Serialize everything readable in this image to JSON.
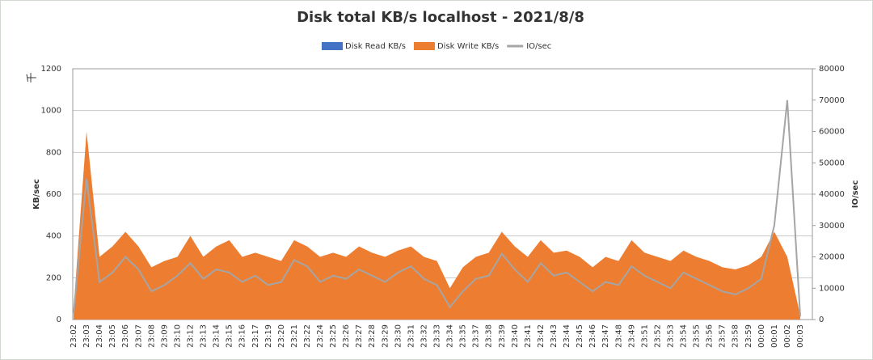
{
  "chart_data": {
    "type": "area",
    "title": "Disk total KB/s localhost - 2021/8/8",
    "y_label": "KB/sec",
    "y2_label": "IO/sec",
    "y_unit_label": "千",
    "categories": [
      "23:02",
      "23:03",
      "23:04",
      "23:05",
      "23:06",
      "23:07",
      "23:08",
      "23:09",
      "23:10",
      "23:12",
      "23:13",
      "23:14",
      "23:15",
      "23:16",
      "23:17",
      "23:19",
      "23:20",
      "23:21",
      "23:22",
      "23:24",
      "23:25",
      "23:26",
      "23:27",
      "23:28",
      "23:29",
      "23:30",
      "23:31",
      "23:32",
      "23:33",
      "23:34",
      "23:35",
      "23:37",
      "23:38",
      "23:39",
      "23:40",
      "23:41",
      "23:42",
      "23:43",
      "23:44",
      "23:45",
      "23:46",
      "23:47",
      "23:48",
      "23:49",
      "23:51",
      "23:52",
      "23:53",
      "23:54",
      "23:55",
      "23:56",
      "23:57",
      "23:58",
      "23:59",
      "00:00",
      "00:01",
      "00:02",
      "00:03"
    ],
    "series": [
      {
        "name": "Disk Read KB/s",
        "color": "#4472c4",
        "values": [
          0,
          0,
          0,
          0,
          0,
          0,
          0,
          0,
          0,
          0,
          0,
          0,
          0,
          0,
          0,
          0,
          0,
          0,
          0,
          0,
          0,
          0,
          0,
          0,
          0,
          0,
          0,
          0,
          0,
          0,
          0,
          0,
          0,
          0,
          0,
          0,
          0,
          0,
          0,
          0,
          0,
          0,
          0,
          0,
          0,
          0,
          0,
          0,
          0,
          0,
          0,
          0,
          0,
          0,
          0,
          0,
          0
        ]
      },
      {
        "name": "Disk Write KB/s",
        "color": "#ed7d31",
        "values": [
          50,
          900,
          300,
          350,
          420,
          350,
          250,
          280,
          300,
          400,
          300,
          350,
          380,
          300,
          320,
          300,
          280,
          380,
          350,
          300,
          320,
          300,
          350,
          320,
          300,
          330,
          350,
          300,
          280,
          150,
          250,
          300,
          320,
          420,
          350,
          300,
          380,
          320,
          330,
          300,
          250,
          300,
          280,
          380,
          320,
          300,
          280,
          330,
          300,
          280,
          250,
          240,
          260,
          300,
          420,
          300,
          20
        ]
      },
      {
        "name": "IO/sec",
        "color": "#a5a5a5",
        "axis": "y2",
        "style": "line",
        "values": [
          2000,
          45000,
          12000,
          15000,
          20000,
          16000,
          9000,
          11000,
          14000,
          18000,
          13000,
          16000,
          15000,
          12000,
          14000,
          11000,
          12000,
          19000,
          17000,
          12000,
          14000,
          13000,
          16000,
          14000,
          12000,
          15000,
          17000,
          13000,
          11000,
          4000,
          9000,
          13000,
          14000,
          21000,
          16000,
          12000,
          18000,
          14000,
          15000,
          12000,
          9000,
          12000,
          11000,
          17000,
          14000,
          12000,
          10000,
          15000,
          13000,
          11000,
          9000,
          8000,
          10000,
          13000,
          30000,
          70000,
          1000
        ]
      }
    ],
    "ylim": [
      0,
      1200
    ],
    "yticks": [
      0,
      200,
      400,
      600,
      800,
      1000,
      1200
    ],
    "y2lim": [
      0,
      80000
    ],
    "y2ticks": [
      0,
      10000,
      20000,
      30000,
      40000,
      50000,
      60000,
      70000,
      80000
    ],
    "grid": true
  }
}
